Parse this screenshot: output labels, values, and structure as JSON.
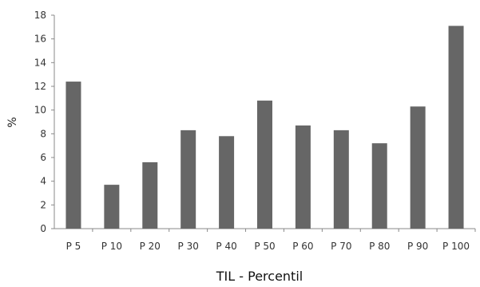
{
  "chart_data": {
    "type": "bar",
    "categories": [
      "P 5",
      "P 10",
      "P 20",
      "P 30",
      "P 40",
      "P 50",
      "P 60",
      "P 70",
      "P 80",
      "P 90",
      "P 100"
    ],
    "values": [
      12.4,
      3.7,
      5.6,
      8.3,
      7.8,
      10.8,
      8.7,
      8.3,
      7.2,
      10.3,
      17.1
    ],
    "xlabel": "TIL - Percentil",
    "ylabel": "%",
    "ylim": [
      0,
      18
    ],
    "yticks": [
      "0",
      "2",
      "4",
      "6",
      "8",
      "10",
      "12",
      "14",
      "16",
      "18"
    ],
    "bar_color": "#666666",
    "axis_color": "#888888",
    "grid": false,
    "legend": "none"
  }
}
